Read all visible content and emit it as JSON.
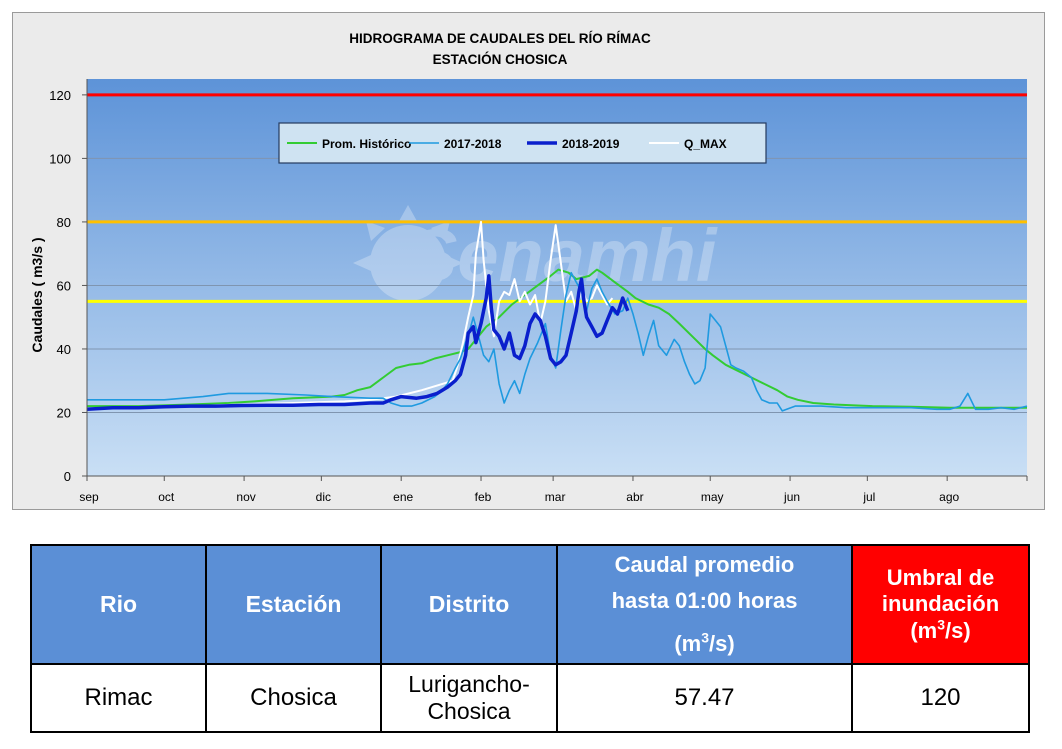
{
  "chart_data": {
    "type": "line",
    "title": "HIDROGRAMA DE CAUDALES DEL RÍO RÍMAC",
    "subtitle": "ESTACIÓN CHOSICA",
    "xlabel": "",
    "ylabel": "Caudales ( m3/s )",
    "ylim": [
      0,
      125
    ],
    "yticks": [
      0,
      20,
      40,
      60,
      80,
      100,
      120
    ],
    "xlim": [
      0,
      365
    ],
    "xticks": [
      {
        "pos": 0,
        "label": "sep"
      },
      {
        "pos": 30,
        "label": "oct"
      },
      {
        "pos": 61,
        "label": "nov"
      },
      {
        "pos": 91,
        "label": "dic"
      },
      {
        "pos": 122,
        "label": "ene"
      },
      {
        "pos": 153,
        "label": "feb"
      },
      {
        "pos": 181,
        "label": "mar"
      },
      {
        "pos": 212,
        "label": "abr"
      },
      {
        "pos": 242,
        "label": "may"
      },
      {
        "pos": 273,
        "label": "jun"
      },
      {
        "pos": 303,
        "label": "jul"
      },
      {
        "pos": 334,
        "label": "ago"
      },
      {
        "pos": 365,
        "label": ""
      }
    ],
    "grid": true,
    "legend_position": "top",
    "thresholds": [
      {
        "value": 120,
        "color": "#ff0000"
      },
      {
        "value": 80,
        "color": "#ffc000"
      },
      {
        "value": 55,
        "color": "#ffff00"
      }
    ],
    "series": [
      {
        "name": "Prom. Histórico",
        "color": "#33cc33",
        "width": 2,
        "points": [
          [
            0,
            22
          ],
          [
            20,
            22
          ],
          [
            40,
            22.5
          ],
          [
            55,
            23
          ],
          [
            65,
            23.5
          ],
          [
            80,
            24.5
          ],
          [
            95,
            25
          ],
          [
            100,
            25.5
          ],
          [
            105,
            27
          ],
          [
            110,
            28
          ],
          [
            115,
            31
          ],
          [
            120,
            34
          ],
          [
            125,
            35
          ],
          [
            130,
            35.5
          ],
          [
            135,
            37
          ],
          [
            140,
            38
          ],
          [
            145,
            39
          ],
          [
            148,
            40
          ],
          [
            152,
            44
          ],
          [
            155,
            47
          ],
          [
            160,
            50
          ],
          [
            165,
            54
          ],
          [
            170,
            57
          ],
          [
            175,
            60
          ],
          [
            180,
            63
          ],
          [
            183,
            65
          ],
          [
            187,
            64
          ],
          [
            190,
            62
          ],
          [
            195,
            63
          ],
          [
            198,
            65
          ],
          [
            200,
            64
          ],
          [
            205,
            61
          ],
          [
            210,
            58
          ],
          [
            213,
            56
          ],
          [
            218,
            54
          ],
          [
            222,
            53
          ],
          [
            226,
            51
          ],
          [
            230,
            48
          ],
          [
            235,
            44
          ],
          [
            240,
            40
          ],
          [
            243,
            38
          ],
          [
            248,
            35
          ],
          [
            253,
            33
          ],
          [
            258,
            31
          ],
          [
            263,
            29
          ],
          [
            268,
            27
          ],
          [
            272,
            25
          ],
          [
            276,
            24
          ],
          [
            282,
            23
          ],
          [
            290,
            22.5
          ],
          [
            305,
            22
          ],
          [
            320,
            21.8
          ],
          [
            335,
            21.5
          ],
          [
            350,
            21.5
          ],
          [
            365,
            21.5
          ]
        ]
      },
      {
        "name": "2017-2018",
        "color": "#1f9ae0",
        "width": 1.6,
        "points": [
          [
            0,
            24
          ],
          [
            30,
            24
          ],
          [
            45,
            25
          ],
          [
            55,
            26
          ],
          [
            70,
            26
          ],
          [
            85,
            25.5
          ],
          [
            95,
            25
          ],
          [
            110,
            24.5
          ],
          [
            115,
            24.5
          ],
          [
            118,
            23
          ],
          [
            122,
            22
          ],
          [
            126,
            22
          ],
          [
            130,
            23
          ],
          [
            135,
            25
          ],
          [
            138,
            27
          ],
          [
            140,
            29
          ],
          [
            143,
            34
          ],
          [
            145,
            37
          ],
          [
            147,
            42
          ],
          [
            149,
            47
          ],
          [
            150,
            50
          ],
          [
            152,
            44
          ],
          [
            154,
            38
          ],
          [
            156,
            36
          ],
          [
            158,
            40
          ],
          [
            160,
            29
          ],
          [
            162,
            23
          ],
          [
            164,
            27
          ],
          [
            166,
            30
          ],
          [
            168,
            26
          ],
          [
            170,
            32
          ],
          [
            172,
            37
          ],
          [
            175,
            42
          ],
          [
            178,
            48
          ],
          [
            180,
            38
          ],
          [
            182,
            34
          ],
          [
            184,
            46
          ],
          [
            186,
            57
          ],
          [
            188,
            64
          ],
          [
            190,
            61
          ],
          [
            192,
            58
          ],
          [
            194,
            52
          ],
          [
            196,
            59
          ],
          [
            198,
            62
          ],
          [
            200,
            58
          ],
          [
            202,
            55
          ],
          [
            205,
            51
          ],
          [
            208,
            52
          ],
          [
            210,
            56
          ],
          [
            212,
            51
          ],
          [
            214,
            45
          ],
          [
            216,
            38
          ],
          [
            218,
            44
          ],
          [
            220,
            49
          ],
          [
            222,
            41
          ],
          [
            225,
            38
          ],
          [
            228,
            43
          ],
          [
            230,
            41
          ],
          [
            232,
            36
          ],
          [
            234,
            32
          ],
          [
            236,
            29
          ],
          [
            238,
            30
          ],
          [
            240,
            34
          ],
          [
            242,
            51
          ],
          [
            244,
            49
          ],
          [
            246,
            47
          ],
          [
            248,
            41
          ],
          [
            250,
            35
          ],
          [
            252,
            34
          ],
          [
            255,
            33
          ],
          [
            258,
            31
          ],
          [
            260,
            27
          ],
          [
            262,
            24
          ],
          [
            265,
            23
          ],
          [
            268,
            23
          ],
          [
            270,
            20.5
          ],
          [
            275,
            22
          ],
          [
            285,
            22
          ],
          [
            295,
            21.5
          ],
          [
            310,
            21.5
          ],
          [
            320,
            21.5
          ],
          [
            330,
            21
          ],
          [
            335,
            21
          ],
          [
            339,
            22
          ],
          [
            342,
            26
          ],
          [
            345,
            21
          ],
          [
            350,
            21
          ],
          [
            355,
            21.5
          ],
          [
            360,
            21
          ],
          [
            365,
            22
          ]
        ]
      },
      {
        "name": "2018-2019",
        "color": "#0a1fcc",
        "width": 3.5,
        "points": [
          [
            0,
            21
          ],
          [
            10,
            21.5
          ],
          [
            20,
            21.5
          ],
          [
            30,
            21.8
          ],
          [
            40,
            22
          ],
          [
            50,
            22
          ],
          [
            60,
            22.2
          ],
          [
            70,
            22.3
          ],
          [
            80,
            22.3
          ],
          [
            90,
            22.5
          ],
          [
            100,
            22.5
          ],
          [
            110,
            23
          ],
          [
            115,
            23
          ],
          [
            118,
            24
          ],
          [
            122,
            25
          ],
          [
            128,
            24.5
          ],
          [
            132,
            25
          ],
          [
            136,
            26
          ],
          [
            140,
            28
          ],
          [
            143,
            30
          ],
          [
            145,
            32
          ],
          [
            147,
            38
          ],
          [
            148,
            45
          ],
          [
            150,
            47
          ],
          [
            151,
            42
          ],
          [
            153,
            48
          ],
          [
            155,
            56
          ],
          [
            156,
            63
          ],
          [
            157,
            53
          ],
          [
            158,
            46
          ],
          [
            160,
            44
          ],
          [
            162,
            40
          ],
          [
            164,
            45
          ],
          [
            166,
            38
          ],
          [
            168,
            37
          ],
          [
            170,
            41
          ],
          [
            172,
            48
          ],
          [
            174,
            51
          ],
          [
            176,
            49
          ],
          [
            178,
            44
          ],
          [
            180,
            37
          ],
          [
            182,
            35
          ],
          [
            184,
            36
          ],
          [
            186,
            38
          ],
          [
            188,
            45
          ],
          [
            190,
            52
          ],
          [
            191,
            58
          ],
          [
            192,
            62
          ],
          [
            193,
            55
          ],
          [
            194,
            50
          ],
          [
            196,
            47
          ],
          [
            198,
            44
          ],
          [
            200,
            45
          ],
          [
            202,
            49
          ],
          [
            204,
            53
          ],
          [
            206,
            51
          ],
          [
            208,
            56
          ],
          [
            210,
            52
          ]
        ]
      },
      {
        "name": "Q_MAX",
        "color": "#ffffff",
        "width": 2,
        "points": [
          [
            0,
            21
          ],
          [
            20,
            21.5
          ],
          [
            40,
            22
          ],
          [
            60,
            22.5
          ],
          [
            80,
            23
          ],
          [
            100,
            23.5
          ],
          [
            110,
            24
          ],
          [
            120,
            25
          ],
          [
            130,
            27
          ],
          [
            138,
            29
          ],
          [
            142,
            30
          ],
          [
            144,
            35
          ],
          [
            146,
            42
          ],
          [
            148,
            50
          ],
          [
            150,
            57
          ],
          [
            151,
            70
          ],
          [
            152,
            75
          ],
          [
            153,
            80
          ],
          [
            154,
            68
          ],
          [
            155,
            60
          ],
          [
            156,
            52
          ],
          [
            158,
            44
          ],
          [
            160,
            55
          ],
          [
            162,
            58
          ],
          [
            164,
            57
          ],
          [
            166,
            62
          ],
          [
            168,
            55
          ],
          [
            170,
            58
          ],
          [
            172,
            54
          ],
          [
            174,
            57
          ],
          [
            176,
            48
          ],
          [
            178,
            55
          ],
          [
            180,
            68
          ],
          [
            182,
            79
          ],
          [
            184,
            67
          ],
          [
            186,
            55
          ],
          [
            188,
            58
          ],
          [
            190,
            52
          ],
          [
            192,
            59
          ],
          [
            194,
            55
          ],
          [
            196,
            56
          ],
          [
            198,
            60
          ],
          [
            200,
            57
          ],
          [
            202,
            54
          ],
          [
            204,
            56
          ]
        ]
      }
    ]
  },
  "table": {
    "headers": {
      "rio": "Rio",
      "estacion": "Estación",
      "distrito": "Distrito",
      "caudal_line1": "Caudal promedio",
      "caudal_line2": "hasta 01:00 horas",
      "caudal_unit_pre": "(m",
      "caudal_unit_sup": "3",
      "caudal_unit_post": "/s)",
      "umbral_line1": "Umbral de",
      "umbral_line2": "inundación",
      "umbral_unit_pre": "(m",
      "umbral_unit_sup": "3",
      "umbral_unit_post": "/s)"
    },
    "row": {
      "rio": "Rimac",
      "estacion": "Chosica",
      "distrito_line1": "Lurigancho-",
      "distrito_line2": "Chosica",
      "caudal": "57.47",
      "umbral": "120"
    }
  }
}
